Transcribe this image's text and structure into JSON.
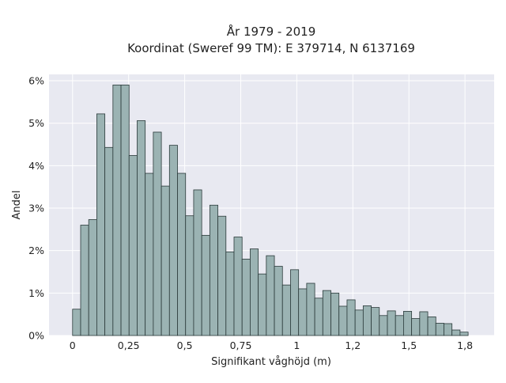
{
  "chart_data": {
    "type": "bar",
    "title_lines": [
      "År 1979 - 2019",
      "Koordinat (Sweref 99 TM): E 379714, N 6137169"
    ],
    "xlabel": "Signifikant våghöjd (m)",
    "ylabel": "Andel",
    "x_ticks": [
      {
        "value": 0,
        "label": "0"
      },
      {
        "value": 0.25,
        "label": "0,25"
      },
      {
        "value": 0.5,
        "label": "0,5"
      },
      {
        "value": 0.75,
        "label": "0,75"
      },
      {
        "value": 1.0,
        "label": "1"
      },
      {
        "value": 1.25,
        "label": "1,2"
      },
      {
        "value": 1.5,
        "label": "1,5"
      },
      {
        "value": 1.75,
        "label": "1,8"
      }
    ],
    "y_ticks": [
      {
        "value": 0,
        "label": "0%"
      },
      {
        "value": 1,
        "label": "1%"
      },
      {
        "value": 2,
        "label": "2%"
      },
      {
        "value": 3,
        "label": "3%"
      },
      {
        "value": 4,
        "label": "4%"
      },
      {
        "value": 5,
        "label": "5%"
      },
      {
        "value": 6,
        "label": "6%"
      }
    ],
    "xlim": [
      -0.105,
      1.88
    ],
    "ylim": [
      0,
      6.15
    ],
    "grid": true,
    "bin_start": 0.0,
    "bin_width": 0.036,
    "values": [
      0.62,
      2.6,
      2.73,
      5.22,
      4.43,
      5.9,
      5.9,
      4.24,
      5.06,
      3.82,
      4.79,
      3.52,
      4.48,
      3.82,
      2.82,
      3.43,
      2.36,
      3.07,
      2.81,
      1.97,
      2.32,
      1.8,
      2.04,
      1.45,
      1.88,
      1.63,
      1.19,
      1.55,
      1.1,
      1.23,
      0.88,
      1.06,
      1.0,
      0.69,
      0.84,
      0.6,
      0.7,
      0.66,
      0.47,
      0.58,
      0.47,
      0.57,
      0.4,
      0.56,
      0.44,
      0.29,
      0.28,
      0.13,
      0.08
    ],
    "colors": {
      "background": "#e8e9f1",
      "bar_fill": "#9bb3b3",
      "bar_stroke": "#2b3a3a",
      "grid": "#ffffff"
    }
  }
}
